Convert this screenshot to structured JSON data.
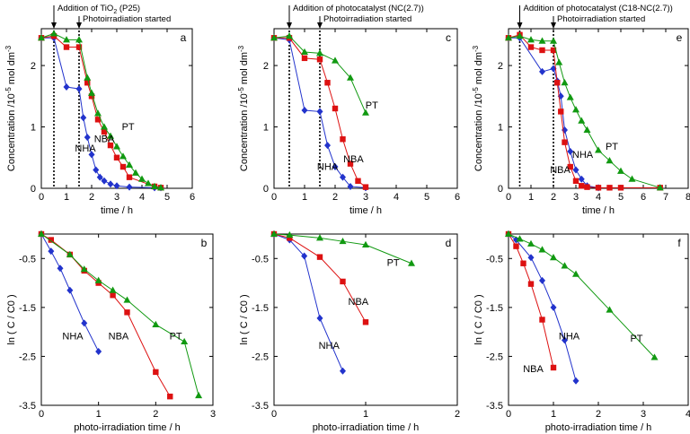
{
  "chart_data": [
    {
      "id": "a",
      "type": "line",
      "panel_label": "a",
      "xlabel": "time / h",
      "ylabel": "Concentration /10",
      "ylabel_sup": "-5",
      "ylabel_tail": " mol dm",
      "ylabel_tail_sup": "-3",
      "xlim": [
        0,
        6
      ],
      "ylim": [
        0,
        2.6
      ],
      "xticks": [
        0,
        1,
        2,
        3,
        4,
        5,
        6
      ],
      "yticks": [
        0,
        1,
        2
      ],
      "annotation_main": "Addition of TiO",
      "annotation_main_sub": "2",
      "annotation_main_tail": " (P25)",
      "annotation_main_x": 0.5,
      "annotation_photo": "Photoirradiation started",
      "annotation_photo_x": 1.5,
      "series": [
        {
          "name": "NHA",
          "color": "#2233cc",
          "marker": "diamond",
          "x": [
            0,
            0.5,
            1.0,
            1.5,
            1.67,
            1.83,
            2.0,
            2.17,
            2.33,
            2.5,
            2.75,
            3.0,
            3.5,
            4.5,
            4.75
          ],
          "y": [
            2.45,
            2.45,
            1.65,
            1.62,
            1.15,
            0.83,
            0.55,
            0.3,
            0.18,
            0.12,
            0.07,
            0.04,
            0.02,
            0.01,
            0.01
          ]
        },
        {
          "name": "NBA",
          "color": "#dd1111",
          "marker": "square",
          "x": [
            0,
            0.5,
            1.0,
            1.5,
            1.83,
            2.0,
            2.25,
            2.5,
            2.75,
            3.0,
            3.25,
            3.5,
            4.5,
            4.75
          ],
          "y": [
            2.45,
            2.48,
            2.3,
            2.3,
            1.72,
            1.5,
            1.12,
            0.92,
            0.7,
            0.5,
            0.35,
            0.18,
            0.03,
            0.01
          ]
        },
        {
          "name": "PT",
          "color": "#119911",
          "marker": "triangle",
          "x": [
            0,
            0.5,
            1.0,
            1.5,
            1.83,
            2.0,
            2.25,
            2.5,
            2.75,
            3.0,
            3.25,
            3.5,
            3.75,
            4.0,
            4.25,
            4.5,
            4.75
          ],
          "y": [
            2.45,
            2.52,
            2.42,
            2.42,
            1.8,
            1.55,
            1.22,
            1.0,
            0.85,
            0.68,
            0.52,
            0.38,
            0.25,
            0.15,
            0.08,
            0.03,
            0.01
          ]
        }
      ],
      "series_labels": [
        {
          "text": "NHA",
          "x": 1.75,
          "y": 0.6
        },
        {
          "text": "NBA",
          "x": 2.5,
          "y": 0.75
        },
        {
          "text": "PT",
          "x": 3.45,
          "y": 0.95
        }
      ]
    },
    {
      "id": "c",
      "type": "line",
      "panel_label": "c",
      "xlabel": "time / h",
      "ylabel": "Concentration /10",
      "ylabel_sup": "-5",
      "ylabel_tail": " mol dm",
      "ylabel_tail_sup": "-3",
      "xlim": [
        0,
        6
      ],
      "ylim": [
        0,
        2.6
      ],
      "xticks": [
        0,
        1,
        2,
        3,
        4,
        5,
        6
      ],
      "yticks": [
        0,
        1,
        2
      ],
      "annotation_main": "Addition of photocatalyst (NC(2.7))",
      "annotation_main_sub": "",
      "annotation_main_tail": "",
      "annotation_main_x": 0.5,
      "annotation_photo": "Photoirradiation started",
      "annotation_photo_x": 1.5,
      "series": [
        {
          "name": "NHA",
          "color": "#2233cc",
          "marker": "diamond",
          "x": [
            0,
            0.5,
            1.0,
            1.5,
            1.75,
            2.0,
            2.25,
            2.5,
            3.0
          ],
          "y": [
            2.45,
            2.42,
            1.27,
            1.25,
            0.7,
            0.35,
            0.18,
            0.03,
            0.01
          ]
        },
        {
          "name": "NBA",
          "color": "#dd1111",
          "marker": "square",
          "x": [
            0,
            0.5,
            1.0,
            1.5,
            1.75,
            2.0,
            2.25,
            2.5,
            2.75,
            3.0
          ],
          "y": [
            2.45,
            2.45,
            2.12,
            2.1,
            1.72,
            1.3,
            0.8,
            0.4,
            0.12,
            0.02
          ]
        },
        {
          "name": "PT",
          "color": "#119911",
          "marker": "triangle",
          "x": [
            0,
            0.5,
            1.0,
            1.5,
            2.0,
            2.5,
            3.0
          ],
          "y": [
            2.45,
            2.48,
            2.22,
            2.2,
            2.08,
            1.8,
            1.23
          ]
        }
      ],
      "series_labels": [
        {
          "text": "PT",
          "x": 3.2,
          "y": 1.3
        },
        {
          "text": "NHA",
          "x": 1.75,
          "y": 0.3
        },
        {
          "text": "NBA",
          "x": 2.6,
          "y": 0.42
        }
      ]
    },
    {
      "id": "e",
      "type": "line",
      "panel_label": "e",
      "xlabel": "time / h",
      "ylabel": "Concentration /10",
      "ylabel_sup": "-5",
      "ylabel_tail": " mol dm",
      "ylabel_tail_sup": "-3",
      "xlim": [
        0,
        8
      ],
      "ylim": [
        0,
        2.6
      ],
      "xticks": [
        0,
        1,
        2,
        3,
        4,
        5,
        6,
        7,
        8
      ],
      "yticks": [
        0,
        1,
        2
      ],
      "annotation_main": "Addition of photocatalyst (C18-NC(2.7))",
      "annotation_main_sub": "",
      "annotation_main_tail": "",
      "annotation_main_x": 0.5,
      "annotation_photo": "Photoirradiation started",
      "annotation_photo_x": 2.0,
      "series": [
        {
          "name": "NHA",
          "color": "#2233cc",
          "marker": "diamond",
          "x": [
            0,
            0.5,
            1.5,
            2.0,
            2.17,
            2.33,
            2.5,
            2.75,
            3.0,
            3.25,
            3.5,
            4.0
          ],
          "y": [
            2.45,
            2.45,
            1.9,
            1.95,
            1.75,
            1.5,
            0.95,
            0.6,
            0.3,
            0.15,
            0.04,
            0.01
          ]
        },
        {
          "name": "NBA",
          "color": "#dd1111",
          "marker": "square",
          "x": [
            0,
            0.5,
            1.0,
            1.5,
            2.0,
            2.17,
            2.33,
            2.5,
            2.75,
            3.0,
            3.25,
            3.5,
            4.0,
            4.5,
            5.0,
            6.75
          ],
          "y": [
            2.45,
            2.5,
            2.3,
            2.25,
            2.25,
            1.72,
            1.25,
            0.75,
            0.35,
            0.12,
            0.04,
            0.02,
            0.01,
            0.01,
            0.01,
            0.01
          ]
        },
        {
          "name": "PT",
          "color": "#119911",
          "marker": "triangle",
          "x": [
            0,
            0.5,
            1.0,
            1.5,
            2.0,
            2.25,
            2.5,
            2.75,
            3.0,
            3.25,
            3.5,
            4.0,
            4.5,
            5.0,
            5.5,
            6.75
          ],
          "y": [
            2.45,
            2.48,
            2.42,
            2.4,
            2.4,
            2.05,
            1.72,
            1.48,
            1.28,
            1.1,
            0.95,
            0.62,
            0.45,
            0.28,
            0.15,
            0.01
          ]
        }
      ],
      "series_labels": [
        {
          "text": "NHA",
          "x": 3.3,
          "y": 0.5
        },
        {
          "text": "NBA",
          "x": 2.3,
          "y": 0.25
        },
        {
          "text": "PT",
          "x": 4.6,
          "y": 0.63
        }
      ]
    },
    {
      "id": "b",
      "type": "line",
      "panel_label": "b",
      "xlabel": "photo-irradiation time / h",
      "ylabel": "ln ( C / C0 )",
      "xlim": [
        0,
        3
      ],
      "ylim": [
        -3.5,
        0
      ],
      "xticks": [
        0,
        1,
        2,
        3
      ],
      "ytick_labels": [
        "-0.5",
        "-1.5",
        "-2.5",
        "-3.5"
      ],
      "ytick_values": [
        -0.5,
        -1.5,
        -2.5,
        -3.5
      ],
      "series": [
        {
          "name": "NHA",
          "color": "#2233cc",
          "marker": "diamond",
          "x": [
            0,
            0.17,
            0.33,
            0.5,
            0.75,
            1.0
          ],
          "y": [
            0,
            -0.35,
            -0.7,
            -1.15,
            -1.82,
            -2.4
          ]
        },
        {
          "name": "NBA",
          "color": "#dd1111",
          "marker": "square",
          "x": [
            0,
            0.17,
            0.5,
            0.75,
            1.0,
            1.25,
            1.5,
            2.0,
            2.25
          ],
          "y": [
            0,
            -0.12,
            -0.42,
            -0.75,
            -1.0,
            -1.25,
            -1.6,
            -2.82,
            -3.32
          ]
        },
        {
          "name": "PT",
          "color": "#119911",
          "marker": "triangle",
          "x": [
            0,
            0.5,
            0.75,
            1.0,
            1.25,
            1.5,
            2.0,
            2.5,
            2.75
          ],
          "y": [
            0,
            -0.42,
            -0.72,
            -0.95,
            -1.15,
            -1.35,
            -1.85,
            -2.2,
            -3.3
          ]
        }
      ],
      "series_labels": [
        {
          "text": "NHA",
          "x": 0.55,
          "y": -2.15
        },
        {
          "text": "NBA",
          "x": 1.35,
          "y": -2.15
        },
        {
          "text": "PT",
          "x": 2.35,
          "y": -2.15
        }
      ]
    },
    {
      "id": "d",
      "type": "line",
      "panel_label": "d",
      "xlabel": "photo-irradiation time / h",
      "ylabel": "ln ( C / C0 )",
      "xlim": [
        0,
        2
      ],
      "ylim": [
        -3.5,
        0
      ],
      "xticks": [
        0,
        1,
        2
      ],
      "ytick_labels": [
        "-0.5",
        "-1.5",
        "-2.5",
        "-3.5"
      ],
      "ytick_values": [
        -0.5,
        -1.5,
        -2.5,
        -3.5
      ],
      "series": [
        {
          "name": "NHA",
          "color": "#2233cc",
          "marker": "diamond",
          "x": [
            0,
            0.17,
            0.33,
            0.5,
            0.75
          ],
          "y": [
            0,
            -0.12,
            -0.45,
            -1.72,
            -2.8
          ]
        },
        {
          "name": "NBA",
          "color": "#dd1111",
          "marker": "square",
          "x": [
            0,
            0.17,
            0.5,
            0.75,
            1.0
          ],
          "y": [
            0,
            -0.08,
            -0.47,
            -0.97,
            -1.8
          ]
        },
        {
          "name": "PT",
          "color": "#119911",
          "marker": "triangle",
          "x": [
            0,
            0.17,
            0.5,
            0.75,
            1.0,
            1.5
          ],
          "y": [
            0,
            -0.02,
            -0.08,
            -0.15,
            -0.22,
            -0.6
          ]
        }
      ],
      "series_labels": [
        {
          "text": "PT",
          "x": 1.3,
          "y": -0.65
        },
        {
          "text": "NBA",
          "x": 0.92,
          "y": -1.45
        },
        {
          "text": "NHA",
          "x": 0.6,
          "y": -2.35
        }
      ]
    },
    {
      "id": "f",
      "type": "line",
      "panel_label": "f",
      "xlabel": "photo-irradiation time / h",
      "ylabel": "ln ( C / C0 )",
      "xlim": [
        0,
        4
      ],
      "ylim": [
        -3.5,
        0
      ],
      "xticks": [
        0,
        1,
        2,
        3,
        4
      ],
      "ytick_labels": [
        "-0.5",
        "-1.5",
        "-2.5",
        "-3.5"
      ],
      "ytick_values": [
        -0.5,
        -1.5,
        -2.5,
        -3.5
      ],
      "series": [
        {
          "name": "NHA",
          "color": "#2233cc",
          "marker": "diamond",
          "x": [
            0,
            0.17,
            0.5,
            0.75,
            1.0,
            1.25,
            1.5
          ],
          "y": [
            0,
            -0.12,
            -0.48,
            -0.95,
            -1.5,
            -2.17,
            -3.0
          ]
        },
        {
          "name": "NBA",
          "color": "#dd1111",
          "marker": "square",
          "x": [
            0,
            0.17,
            0.33,
            0.5,
            0.75,
            1.0
          ],
          "y": [
            0,
            -0.25,
            -0.6,
            -1.02,
            -1.75,
            -2.73
          ]
        },
        {
          "name": "PT",
          "color": "#119911",
          "marker": "triangle",
          "x": [
            0,
            0.25,
            0.5,
            0.75,
            1.0,
            1.25,
            1.5,
            2.25,
            3.25
          ],
          "y": [
            0,
            -0.1,
            -0.2,
            -0.32,
            -0.48,
            -0.65,
            -0.82,
            -1.55,
            -2.52
          ]
        }
      ],
      "series_labels": [
        {
          "text": "NHA",
          "x": 1.35,
          "y": -2.15
        },
        {
          "text": "NBA",
          "x": 0.55,
          "y": -2.82
        },
        {
          "text": "PT",
          "x": 2.85,
          "y": -2.2
        }
      ]
    }
  ]
}
